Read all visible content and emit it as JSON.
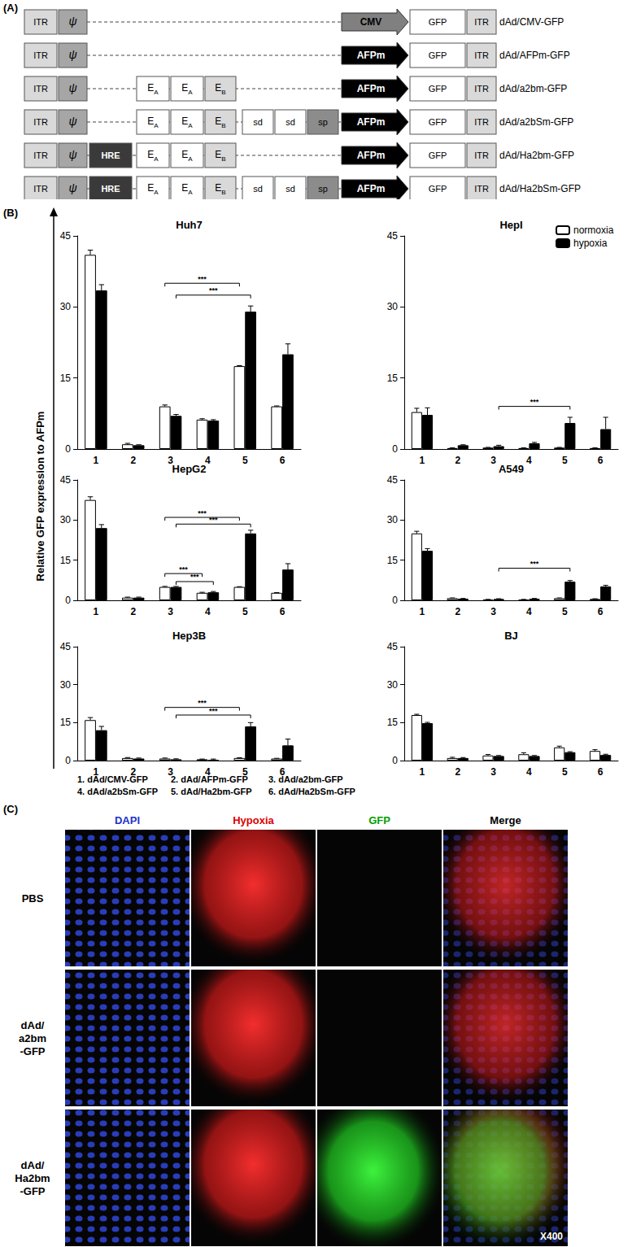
{
  "panel_a": {
    "label": "(A)",
    "constructs": [
      {
        "name": "dAd/CMV-GFP",
        "cells": [
          "ITR",
          "ψ",
          null,
          null,
          null,
          null,
          null,
          null,
          null,
          "CMV",
          "GFP",
          "ITR"
        ]
      },
      {
        "name": "dAd/AFPm-GFP",
        "cells": [
          "ITR",
          "ψ",
          null,
          null,
          null,
          null,
          null,
          null,
          null,
          "AFPm",
          "GFP",
          "ITR"
        ]
      },
      {
        "name": "dAd/a2bm-GFP",
        "cells": [
          "ITR",
          "ψ",
          null,
          {
            "text": "E",
            "sub": "A"
          },
          {
            "text": "E",
            "sub": "A"
          },
          {
            "text": "E",
            "sub": "B"
          },
          null,
          null,
          null,
          "AFPm",
          "GFP",
          "ITR"
        ]
      },
      {
        "name": "dAd/a2bSm-GFP",
        "cells": [
          "ITR",
          "ψ",
          null,
          {
            "text": "E",
            "sub": "A"
          },
          {
            "text": "E",
            "sub": "A"
          },
          {
            "text": "E",
            "sub": "B"
          },
          "sd",
          "sd",
          "sp",
          "AFPm",
          "GFP",
          "ITR"
        ]
      },
      {
        "name": "dAd/Ha2bm-GFP",
        "cells": [
          "ITR",
          "ψ",
          "HRE",
          {
            "text": "E",
            "sub": "A"
          },
          {
            "text": "E",
            "sub": "A"
          },
          {
            "text": "E",
            "sub": "B"
          },
          null,
          null,
          null,
          "AFPm",
          "GFP",
          "ITR"
        ]
      },
      {
        "name": "dAd/Ha2bSm-GFP",
        "cells": [
          "ITR",
          "ψ",
          "HRE",
          {
            "text": "E",
            "sub": "A"
          },
          {
            "text": "E",
            "sub": "A"
          },
          {
            "text": "E",
            "sub": "B"
          },
          "sd",
          "sd",
          "sp",
          "AFPm",
          "GFP",
          "ITR"
        ]
      }
    ]
  },
  "panel_b": {
    "label": "(B)",
    "y_title": "Relative GFP expression to AFPm",
    "key": [
      "1. dAd/CMV-GFP",
      "2. dAd/AFPm-GFP",
      "3. dAd/a2bm-GFP",
      "4. dAd/a2bSm-GFP",
      "5. dAd/Ha2bm-GFP",
      "6. dAd/Ha2bSm-GFP"
    ]
  },
  "chart_data": [
    {
      "type": "bar",
      "title": "Huh7",
      "categories": [
        "1",
        "2",
        "3",
        "4",
        "5",
        "6"
      ],
      "series": [
        {
          "name": "normoxia",
          "color": "#ffffff",
          "values": [
            41,
            1,
            9,
            6.2,
            17.5,
            9
          ],
          "errors": [
            1,
            0.2,
            0.3,
            0.2,
            0.1,
            0.1
          ]
        },
        {
          "name": "hypoxia",
          "color": "#000000",
          "values": [
            33.5,
            0.8,
            7,
            6,
            29,
            20
          ],
          "errors": [
            1.2,
            0.1,
            0.3,
            0.2,
            1.2,
            2.2
          ]
        }
      ],
      "ylim": [
        0,
        45
      ],
      "yticks": [
        0,
        15,
        30,
        45
      ],
      "grid": false,
      "significance": [
        {
          "from": "3",
          "from_series": "normoxia",
          "to": "5",
          "to_series": "normoxia",
          "y": 35,
          "label": "***"
        },
        {
          "from": "3",
          "from_series": "hypoxia",
          "to": "5",
          "to_series": "hypoxia",
          "y": 32.5,
          "label": "***"
        }
      ]
    },
    {
      "type": "bar",
      "title": "HepI",
      "categories": [
        "1",
        "2",
        "3",
        "4",
        "5",
        "6"
      ],
      "series": [
        {
          "name": "normoxia",
          "color": "#ffffff",
          "values": [
            7.8,
            0.2,
            0.3,
            0.2,
            0.3,
            0.2
          ],
          "errors": [
            0.8,
            0.05,
            0.05,
            0.05,
            0.05,
            0.05
          ]
        },
        {
          "name": "hypoxia",
          "color": "#000000",
          "values": [
            7.2,
            0.8,
            0.6,
            1.2,
            5.5,
            4.2
          ],
          "errors": [
            1.5,
            0.1,
            0.2,
            0.2,
            1.2,
            2.5
          ]
        }
      ],
      "ylim": [
        0,
        45
      ],
      "yticks": [
        0,
        15,
        30,
        45
      ],
      "grid": false,
      "legend": "upper right",
      "significance": [
        {
          "from": "3",
          "from_series": "hypoxia",
          "to": "5",
          "to_series": "hypoxia",
          "y": 9,
          "label": "***"
        }
      ]
    },
    {
      "type": "bar",
      "title": "HepG2",
      "categories": [
        "1",
        "2",
        "3",
        "4",
        "5",
        "6"
      ],
      "series": [
        {
          "name": "normoxia",
          "color": "#ffffff",
          "values": [
            37.5,
            1,
            5,
            2.8,
            5,
            2.8
          ],
          "errors": [
            1.2,
            0.2,
            0.2,
            0.2,
            0.1,
            0.1
          ]
        },
        {
          "name": "hypoxia",
          "color": "#000000",
          "values": [
            27,
            1,
            5,
            3,
            25,
            11.5
          ],
          "errors": [
            1.3,
            0.2,
            0.2,
            0.3,
            1.2,
            2.2
          ]
        }
      ],
      "ylim": [
        0,
        45
      ],
      "yticks": [
        0,
        15,
        30,
        45
      ],
      "grid": false,
      "significance": [
        {
          "from": "3",
          "from_series": "normoxia",
          "to": "5",
          "to_series": "normoxia",
          "y": 31,
          "label": "***"
        },
        {
          "from": "3",
          "from_series": "hypoxia",
          "to": "5",
          "to_series": "hypoxia",
          "y": 28.5,
          "label": "***"
        },
        {
          "from": "3",
          "from_series": "normoxia",
          "to": "4",
          "to_series": "normoxia",
          "y": 10,
          "label": "***"
        },
        {
          "from": "3",
          "from_series": "hypoxia",
          "to": "4",
          "to_series": "hypoxia",
          "y": 7,
          "label": "***"
        }
      ]
    },
    {
      "type": "bar",
      "title": "A549",
      "categories": [
        "1",
        "2",
        "3",
        "4",
        "5",
        "6"
      ],
      "series": [
        {
          "name": "normoxia",
          "color": "#ffffff",
          "values": [
            25,
            0.8,
            0.3,
            0.3,
            0.8,
            0.5
          ],
          "errors": [
            0.8,
            0.1,
            0.05,
            0.05,
            0.1,
            0.1
          ]
        },
        {
          "name": "hypoxia",
          "color": "#000000",
          "values": [
            18.5,
            0.6,
            0.5,
            0.6,
            7,
            5.2
          ],
          "errors": [
            0.8,
            0.1,
            0.1,
            0.1,
            0.4,
            0.4
          ]
        }
      ],
      "ylim": [
        0,
        45
      ],
      "yticks": [
        0,
        15,
        30,
        45
      ],
      "grid": false,
      "significance": [
        {
          "from": "3",
          "from_series": "hypoxia",
          "to": "5",
          "to_series": "hypoxia",
          "y": 12,
          "label": "***"
        }
      ]
    },
    {
      "type": "bar",
      "title": "Hep3B",
      "categories": [
        "1",
        "2",
        "3",
        "4",
        "5",
        "6"
      ],
      "series": [
        {
          "name": "normoxia",
          "color": "#ffffff",
          "values": [
            16,
            1,
            0.8,
            0.5,
            1,
            0.8
          ],
          "errors": [
            1,
            0.2,
            0.2,
            0.1,
            0.1,
            0.1
          ]
        },
        {
          "name": "hypoxia",
          "color": "#000000",
          "values": [
            12,
            0.8,
            0.5,
            0.3,
            13.5,
            6
          ],
          "errors": [
            1.5,
            0.2,
            0.2,
            0.3,
            1.5,
            2.5
          ]
        }
      ],
      "ylim": [
        0,
        45
      ],
      "yticks": [
        0,
        15,
        30,
        45
      ],
      "grid": false,
      "significance": [
        {
          "from": "3",
          "from_series": "normoxia",
          "to": "5",
          "to_series": "normoxia",
          "y": 21,
          "label": "***"
        },
        {
          "from": "3",
          "from_series": "hypoxia",
          "to": "5",
          "to_series": "hypoxia",
          "y": 18,
          "label": "***"
        }
      ]
    },
    {
      "type": "bar",
      "title": "BJ",
      "categories": [
        "1",
        "2",
        "3",
        "4",
        "5",
        "6"
      ],
      "series": [
        {
          "name": "normoxia",
          "color": "#ffffff",
          "values": [
            18,
            1,
            2,
            2.5,
            5.2,
            3.8
          ],
          "errors": [
            0.3,
            0.3,
            0.4,
            0.6,
            0.5,
            0.5
          ]
        },
        {
          "name": "hypoxia",
          "color": "#000000",
          "values": [
            14.8,
            1,
            1.8,
            1.8,
            3.3,
            2.2
          ],
          "errors": [
            0.3,
            0.2,
            0.2,
            0.2,
            0.2,
            0.3
          ]
        }
      ],
      "ylim": [
        0,
        45
      ],
      "yticks": [
        0,
        15,
        30,
        45
      ],
      "grid": false,
      "significance": []
    }
  ],
  "panel_c": {
    "label": "(C)",
    "columns": [
      "DAPI",
      "Hypoxia",
      "GFP",
      "Merge"
    ],
    "rows": [
      [
        "PBS"
      ],
      [
        "dAd/",
        "a2bm",
        "-GFP"
      ],
      [
        "dAd/",
        "Ha2bm",
        "-GFP"
      ]
    ],
    "magnification": "X400"
  }
}
